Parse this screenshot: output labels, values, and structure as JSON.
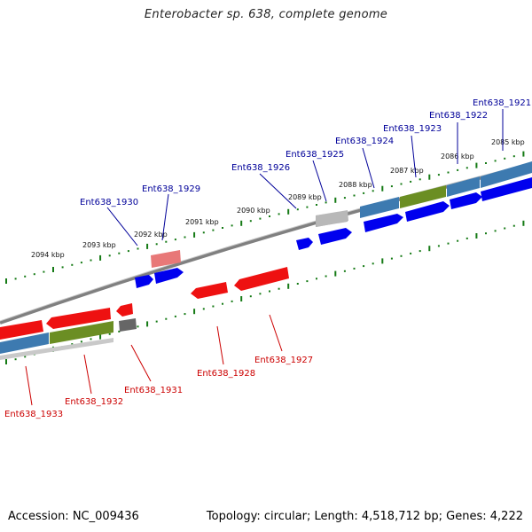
{
  "title": "Enterobacter sp. 638, complete genome",
  "footer": {
    "accession": "Accession: NC_009436",
    "summary": "Topology: circular; Length: 4,518,712 bp; Genes: 4,222"
  },
  "kbp_labels": [
    "2085 kbp",
    "2086 kbp",
    "2087 kbp",
    "2088 kbp",
    "2089 kbp",
    "2090 kbp",
    "2091 kbp",
    "2092 kbp",
    "2093 kbp",
    "2094 kbp"
  ],
  "genes_top": [
    "Ent638_1921",
    "Ent638_1922",
    "Ent638_1923",
    "Ent638_1924",
    "Ent638_1925",
    "Ent638_1926",
    "Ent638_1929",
    "Ent638_1930"
  ],
  "genes_bottom": [
    "Ent638_1927",
    "Ent638_1928",
    "Ent638_1931",
    "Ent638_1932",
    "Ent638_1933"
  ],
  "colors": {
    "forward_gene": "#0000ee",
    "reverse_gene": "#ee1111",
    "pale_gene": "#e87878",
    "rna_blue": "#3d7ab0",
    "rna_green": "#6b8e23",
    "grey_gene": "#666666",
    "light_grey": "#b0b0b0",
    "backbone": "#808080",
    "ticks": "#157a15",
    "label_top": "#000099",
    "label_bottom": "#cc0000"
  }
}
